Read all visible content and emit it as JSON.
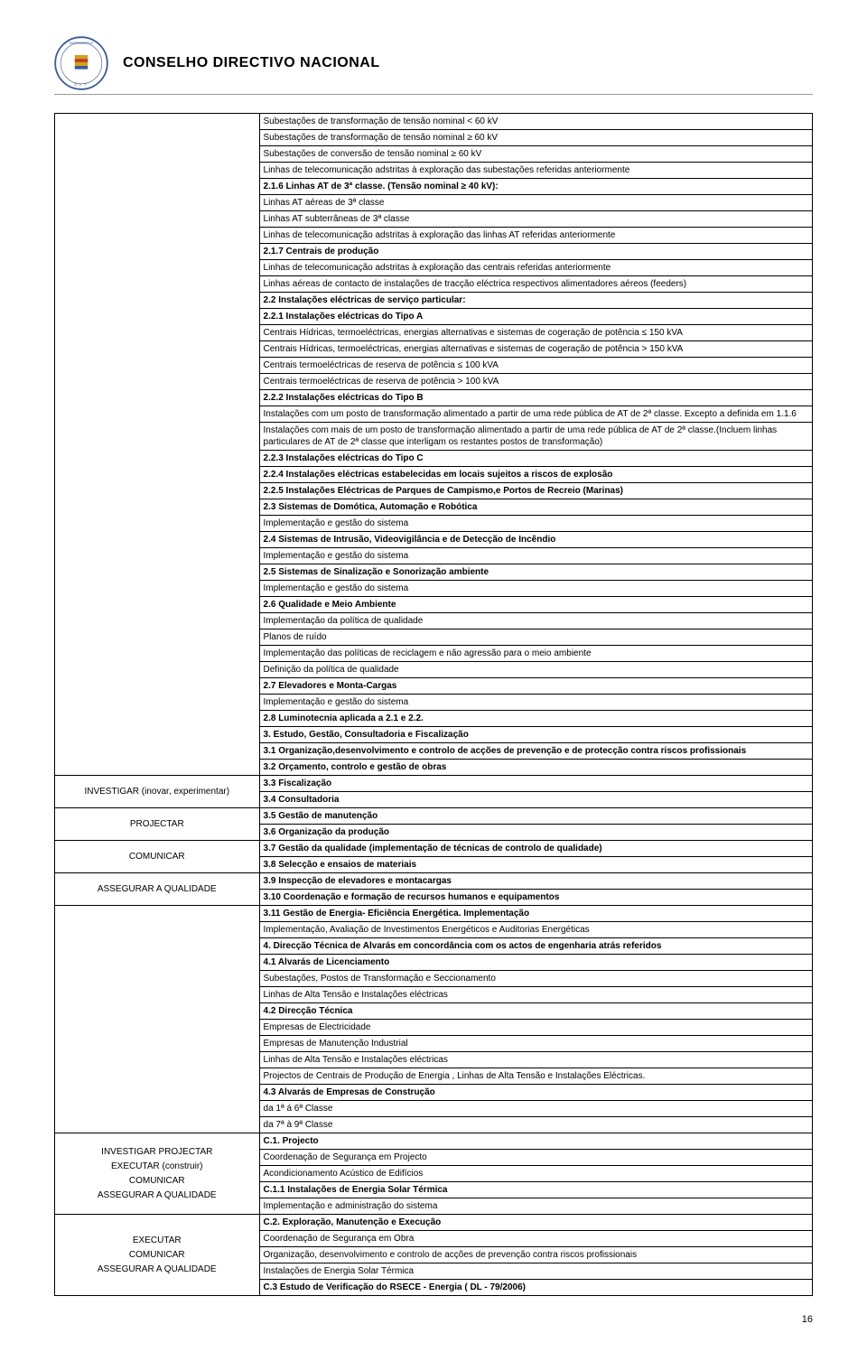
{
  "header": {
    "title": "CONSELHO DIRECTIVO NACIONAL"
  },
  "pageNumber": "16",
  "cells": [
    {
      "left": "",
      "right": [
        {
          "t": "Subestações de transformação de tensão nominal < 60 kV"
        },
        {
          "t": "Subestações de transformação de tensão nominal ≥  60 kV"
        },
        {
          "t": "Subestações de conversão de tensão nominal ≥  60 kV"
        },
        {
          "t": "Linhas de telecomunicação adstritas à exploração das subestações referidas anteriormente"
        },
        {
          "t": "2.1.6 Linhas AT de 3ª classe. (Tensão nominal ≥ 40 kV):",
          "b": true
        },
        {
          "t": "Linhas AT aéreas de 3ª classe"
        },
        {
          "t": "Linhas AT subterrâneas de 3ª classe"
        },
        {
          "t": "Linhas de telecomunicação adstritas à exploração das linhas AT referidas anteriormente"
        },
        {
          "t": "2.1.7 Centrais de produção",
          "b": true
        },
        {
          "t": "Linhas de telecomunicação adstritas à exploração das centrais referidas anteriormente"
        },
        {
          "t": "Linhas aéreas de contacto de instalações de tracção eléctrica respectivos alimentadores aéreos (feeders)"
        },
        {
          "t": "2.2 Instalações eléctricas de serviço particular:",
          "b": true
        },
        {
          "t": "2.2.1 Instalações eléctricas do Tipo A",
          "b": true
        },
        {
          "t": "Centrais Hídricas, termoeléctricas, energias alternativas e sistemas de cogeração de potência ≤ 150 kVA"
        },
        {
          "t": "Centrais Hídricas, termoeléctricas, energias alternativas e sistemas de cogeração de potência  > 150 kVA"
        },
        {
          "t": "Centrais termoeléctricas de reserva de potência ≤ 100 kVA"
        },
        {
          "t": "Centrais termoeléctricas de reserva de potência > 100 kVA"
        },
        {
          "t": "2.2.2 Instalações eléctricas do Tipo B",
          "b": true
        },
        {
          "t": "Instalações com um posto de transformação alimentado a partir de uma rede pública de AT de 2ª classe. Excepto a definida em 1.1.6"
        },
        {
          "t": "Instalações com mais de um posto de transformação alimentado a partir de uma rede pública de AT de 2ª classe.(Incluem linhas particulares de AT de 2ª classe que interligam os restantes postos de transformação)"
        },
        {
          "t": "2.2.3 Instalações eléctricas do Tipo C",
          "b": true
        },
        {
          "t": "2.2.4 Instalações eléctricas estabelecidas em locais sujeitos a riscos de explosão",
          "b": true
        },
        {
          "t": "2.2.5 Instalações Eléctricas de Parques de Campismo,e Portos de Recreio (Marinas)",
          "b": true
        },
        {
          "t": "2.3 Sistemas de Domótica, Automação e Robótica",
          "b": true
        },
        {
          "t": "Implementação e gestão do sistema"
        },
        {
          "t": "2.4 Sistemas de Intrusão, Videovigilância e de Detecção de Incêndio",
          "b": true
        },
        {
          "t": "Implementação e gestão do sistema"
        },
        {
          "t": "2.5 Sistemas de Sinalização e Sonorização ambiente",
          "b": true
        },
        {
          "t": "Implementação e gestão do sistema"
        },
        {
          "t": "2.6 Qualidade e Meio Ambiente",
          "b": true
        },
        {
          "t": "Implementação da política de qualidade"
        },
        {
          "t": "Planos de ruído"
        },
        {
          "t": "Implementação das políticas de reciclagem e não agressão para o meio ambiente"
        },
        {
          "t": "Definição da política de qualidade"
        },
        {
          "t": "2.7 Elevadores e Monta-Cargas",
          "b": true
        },
        {
          "t": "Implementação e gestão do sistema"
        },
        {
          "t": "2.8 Luminotecnia aplicada a 2.1 e 2.2.",
          "b": true
        },
        {
          "t": "3.      Estudo, Gestão, Consultadoria e Fiscalização",
          "b": true
        },
        {
          "t": "3.1 Organização,desenvolvimento e controlo de acções de prevenção e de protecção contra riscos profissionais",
          "b": true
        },
        {
          "t": "3.2 Orçamento, controlo e gestão de obras",
          "b": true
        }
      ]
    },
    {
      "left": "INVESTIGAR (inovar, experimentar)",
      "right": [
        {
          "t": "3.3 Fiscalização",
          "b": true
        },
        {
          "t": "3.4 Consultadoria",
          "b": true
        }
      ]
    },
    {
      "left": "PROJECTAR",
      "right": [
        {
          "t": "3.5 Gestão de manutenção",
          "b": true
        },
        {
          "t": "3.6 Organização da produção",
          "b": true
        }
      ]
    },
    {
      "left": "COMUNICAR",
      "right": [
        {
          "t": "3.7 Gestão da qualidade (implementação de técnicas de controlo de qualidade)",
          "b": true
        },
        {
          "t": "3.8 Selecção e ensaios de materiais",
          "b": true
        }
      ]
    },
    {
      "left": "ASSEGURAR A QUALIDADE",
      "right": [
        {
          "t": "3.9 Inspecção de elevadores e montacargas",
          "b": true
        },
        {
          "t": "3.10 Coordenação e formação de recursos humanos e equipamentos",
          "b": true
        }
      ]
    },
    {
      "left": "",
      "right": [
        {
          "t": "3.11 Gestão de Energia- Eficiência Energética. Implementação",
          "b": true
        },
        {
          "t": "Implementação, Avaliação de Investimentos Energéticos e Auditorias Energéticas"
        },
        {
          "t": "4. Direcção Técnica de Alvarás em concordância com os actos de engenharia atrás referidos",
          "b": true
        },
        {
          "t": "4.1 Alvarás de Licenciamento",
          "b": true
        },
        {
          "t": "Subestações, Postos de Transformação e Seccionamento"
        },
        {
          "t": "Linhas de Alta Tensão e Instalações eléctricas"
        },
        {
          "t": "4.2 Direcção Técnica",
          "b": true
        },
        {
          "t": "Empresas de Electricidade"
        },
        {
          "t": "Empresas de Manutenção Industrial"
        },
        {
          "t": "Linhas de Alta Tensão e Instalações eléctricas"
        },
        {
          "t": "Projectos de Centrais de Produção de Energia , Linhas de Alta Tensão e Instalações Eléctricas."
        },
        {
          "t": "4.3 Alvarás de Empresas de Construção",
          "b": true
        },
        {
          "t": "da 1ª á 6ª Classe"
        },
        {
          "t": "da 7ª à 9ª Classe"
        }
      ]
    },
    {
      "left": "INVESTIGAR PROJECTAR\nEXECUTAR (construir)\nCOMUNICAR\nASSEGURAR A QUALIDADE",
      "right": [
        {
          "t": "C.1. Projecto",
          "b": true
        },
        {
          "t": "Coordenação de Segurança em Projecto"
        },
        {
          "t": "Acondicionamento Acústico de Edifícios"
        },
        {
          "t": "C.1.1 Instalações de Energia Solar Térmica",
          "b": true
        },
        {
          "t": "Implementação e administração do sistema"
        }
      ]
    },
    {
      "left": "EXECUTAR\nCOMUNICAR\nASSEGURAR A QUALIDADE",
      "right": [
        {
          "t": "C.2. Exploração, Manutenção e Execução",
          "b": true
        },
        {
          "t": "Coordenação de Segurança em Obra"
        },
        {
          "t": "Organização, desenvolvimento e controlo de acções de prevenção contra riscos profissionais"
        },
        {
          "t": "Instalações de Energia Solar Térmica"
        },
        {
          "t": "C.3 Estudo de Verificação do RSECE - Energia ( DL - 79/2006)",
          "b": true
        }
      ]
    }
  ]
}
